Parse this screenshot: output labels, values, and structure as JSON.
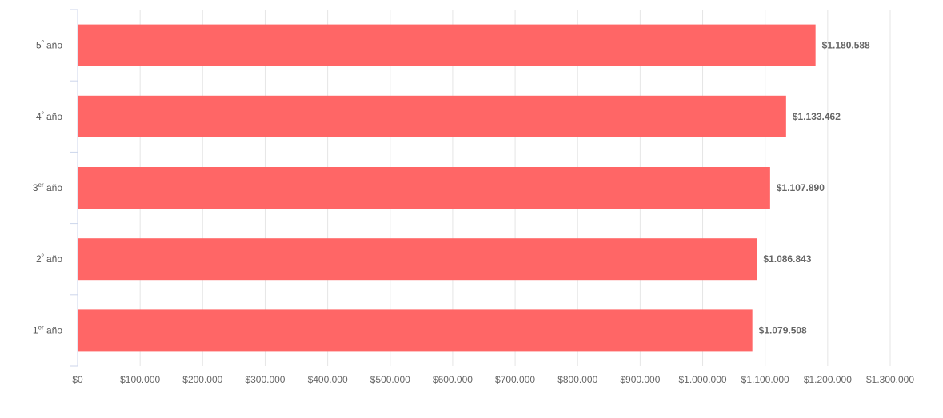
{
  "chart_data": {
    "type": "bar",
    "orientation": "horizontal",
    "title": "",
    "xlabel": "",
    "ylabel": "",
    "categories": [
      {
        "main": "5",
        "sup": "º",
        "rest": " año"
      },
      {
        "main": "4",
        "sup": "º",
        "rest": " año"
      },
      {
        "main": "3",
        "sup": "er",
        "rest": " año"
      },
      {
        "main": "2",
        "sup": "º",
        "rest": " año"
      },
      {
        "main": "1",
        "sup": "er",
        "rest": " año"
      }
    ],
    "values": [
      1180588,
      1133462,
      1107890,
      1086843,
      1079508
    ],
    "value_labels": [
      "$1.180.588",
      "$1.133.462",
      "$1.107.890",
      "$1.086.843",
      "$1.079.508"
    ],
    "xlim": [
      0,
      1300000
    ],
    "x_ticks": [
      0,
      100000,
      200000,
      300000,
      400000,
      500000,
      600000,
      700000,
      800000,
      900000,
      1000000,
      1100000,
      1200000,
      1300000
    ],
    "x_tick_labels": [
      "$0",
      "$100.000",
      "$200.000",
      "$300.000",
      "$400.000",
      "$500.000",
      "$600.000",
      "$700.000",
      "$800.000",
      "$900.000",
      "$1.000.000",
      "$1.100.000",
      "$1.200.000",
      "$1.300.000"
    ],
    "grid": true,
    "legend": "none",
    "colors": {
      "bar": "#ff6666",
      "grid": "#e6e6e6",
      "axis": "#ccd6eb"
    }
  }
}
